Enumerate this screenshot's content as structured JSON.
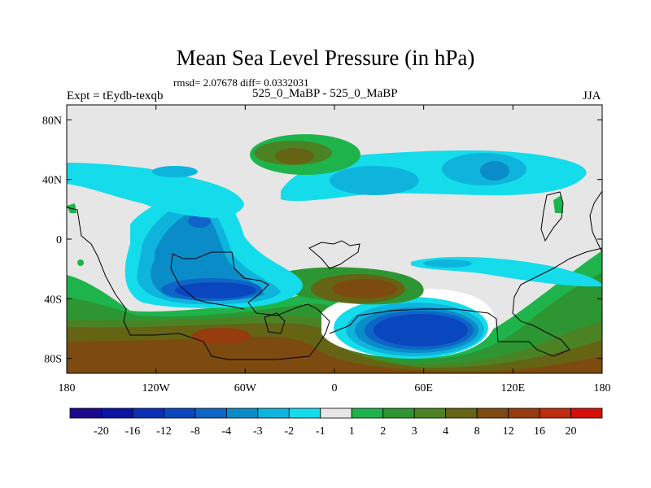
{
  "title": "Mean Sea Level Pressure (in hPa)",
  "stats": "rmsd= 2.07678 diff= 0.0332031",
  "experiment": "Expt = tEydb-texqb",
  "comparison": "525_0_MaBP - 525_0_MaBP",
  "season": "JJA",
  "chart_data": {
    "type": "heatmap",
    "variable": "Mean Sea Level Pressure difference",
    "units": "hPa",
    "x_ticks": [
      {
        "value": -180,
        "label": "180"
      },
      {
        "value": -120,
        "label": "120W"
      },
      {
        "value": -60,
        "label": "60W"
      },
      {
        "value": 0,
        "label": "0"
      },
      {
        "value": 60,
        "label": "60E"
      },
      {
        "value": 120,
        "label": "120E"
      },
      {
        "value": 180,
        "label": "180"
      }
    ],
    "y_ticks": [
      {
        "value": 80,
        "label": "80N"
      },
      {
        "value": 40,
        "label": "40N"
      },
      {
        "value": 0,
        "label": "0"
      },
      {
        "value": -40,
        "label": "40S"
      },
      {
        "value": -80,
        "label": "80S"
      }
    ],
    "xlim": [
      -180,
      180
    ],
    "ylim": [
      -90,
      90
    ],
    "colorbar": {
      "labels": [
        "-20",
        "-16",
        "-12",
        "-8",
        "-4",
        "-3",
        "-2",
        "-1",
        "1",
        "2",
        "3",
        "4",
        "8",
        "12",
        "16",
        "20"
      ],
      "colors": [
        "#1c0a8c",
        "#0a14a0",
        "#0a2eb4",
        "#0a46be",
        "#0f64c8",
        "#0a8cc8",
        "#0fb4dc",
        "#14dceb",
        "#e6e6e6",
        "#1eb44b",
        "#2d9632",
        "#4b8223",
        "#646414",
        "#7d4b0f",
        "#963c0f",
        "#be2d0f",
        "#d70f0a"
      ]
    },
    "regions": [
      {
        "name": "central-pacific-negative-core",
        "lon": -105,
        "lat": -35,
        "level": "-8"
      },
      {
        "name": "south-indian-ocean-negative-core",
        "lon": 45,
        "lat": -62,
        "level": "-12"
      },
      {
        "name": "north-pacific-negative",
        "lon": -120,
        "lat": 20,
        "level": "-4"
      },
      {
        "name": "north-atlantic-negative",
        "lon": 50,
        "lat": 42,
        "level": "-3"
      },
      {
        "name": "north-atlantic-positive",
        "lon": -30,
        "lat": 55,
        "level": "4"
      },
      {
        "name": "southern-ocean-positive",
        "lon": -40,
        "lat": -70,
        "level": "8"
      },
      {
        "name": "south-atlantic-positive",
        "lon": 20,
        "lat": -35,
        "level": "4"
      }
    ]
  }
}
